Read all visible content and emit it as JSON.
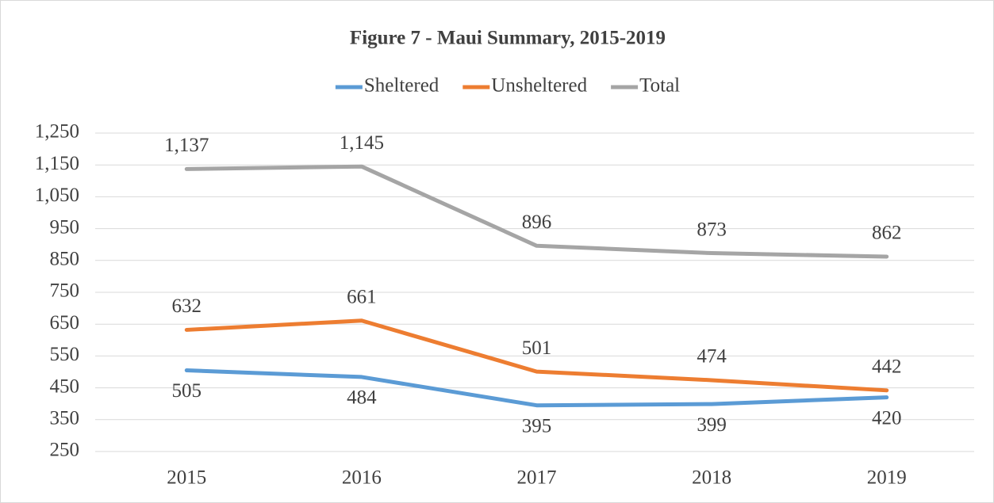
{
  "chart_data": {
    "type": "line",
    "title": "Figure 7 - Maui Summary, 2015-2019",
    "categories": [
      "2015",
      "2016",
      "2017",
      "2018",
      "2019"
    ],
    "series": [
      {
        "name": "Sheltered",
        "color": "#5b9bd5",
        "values": [
          505,
          484,
          395,
          399,
          420
        ]
      },
      {
        "name": "Unsheltered",
        "color": "#ed7d31",
        "values": [
          632,
          661,
          501,
          474,
          442
        ]
      },
      {
        "name": "Total",
        "color": "#a5a5a5",
        "values": [
          1137,
          1145,
          896,
          873,
          862
        ],
        "value_labels": [
          "1,137",
          "1,145",
          "896",
          "873",
          "862"
        ]
      }
    ],
    "ylim": [
      250,
      1250
    ],
    "yticks": [
      250,
      350,
      450,
      550,
      650,
      750,
      850,
      950,
      {
        "value": 1050,
        "label": "1,050"
      },
      {
        "value": 1150,
        "label": "1,150"
      },
      {
        "value": 1250,
        "label": "1,250"
      }
    ],
    "grid": true,
    "legend": "top"
  }
}
